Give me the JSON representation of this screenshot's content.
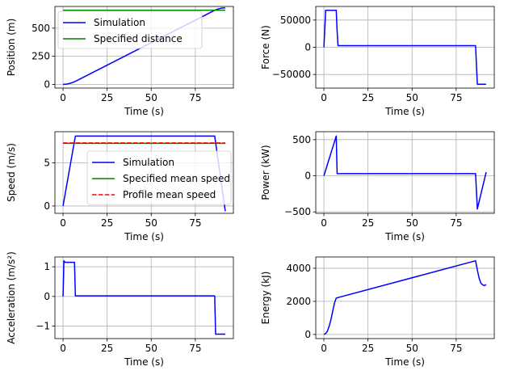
{
  "chart_data": [
    {
      "id": "position",
      "type": "line",
      "xlabel": "Time (s)",
      "ylabel": "Position (m)",
      "xlim": [
        -4.6,
        96.6
      ],
      "ylim": [
        -33,
        693
      ],
      "xticks": [
        0,
        25,
        50,
        75
      ],
      "yticks": [
        0,
        250,
        500
      ],
      "grid": true,
      "legend": "upper-left",
      "series": [
        {
          "name": "Simulation",
          "color": "#0000ff",
          "style": "solid",
          "x": [
            0,
            2,
            4,
            6,
            8,
            10,
            20,
            30,
            40,
            50,
            60,
            70,
            80,
            86,
            88,
            90,
            92
          ],
          "y": [
            0,
            2,
            9,
            20,
            35,
            51,
            131,
            211,
            291,
            371,
            451,
            531,
            611,
            659,
            671,
            679,
            680
          ]
        },
        {
          "name": "Specified distance",
          "color": "#008000",
          "style": "solid",
          "x": [
            0,
            92
          ],
          "y": [
            660,
            660
          ]
        }
      ]
    },
    {
      "id": "force",
      "type": "line",
      "xlabel": "Time (s)",
      "ylabel": "Force (N)",
      "xlim": [
        -4.6,
        96.6
      ],
      "ylim": [
        -75000,
        75000
      ],
      "xticks": [
        0,
        25,
        50,
        75
      ],
      "yticks": [
        -50000,
        0,
        50000
      ],
      "grid": true,
      "series": [
        {
          "name": "",
          "color": "#0000ff",
          "style": "solid",
          "x": [
            0,
            0.6,
            1,
            7,
            7.5,
            8,
            86,
            86.6,
            87,
            92
          ],
          "y": [
            0,
            40000,
            68000,
            68000,
            30000,
            3000,
            3000,
            -40000,
            -68000,
            -68000
          ]
        }
      ]
    },
    {
      "id": "speed",
      "type": "line",
      "xlabel": "Time (s)",
      "ylabel": "Speed (m/s)",
      "xlim": [
        -4.6,
        96.6
      ],
      "ylim": [
        -0.85,
        8.6
      ],
      "xticks": [
        0,
        25,
        50,
        75
      ],
      "yticks": [
        0,
        5
      ],
      "grid": true,
      "legend": "center",
      "series": [
        {
          "name": "Simulation",
          "color": "#0000ff",
          "style": "solid",
          "x": [
            0,
            7,
            86,
            92
          ],
          "y": [
            0,
            8.1,
            8.1,
            -0.6
          ]
        },
        {
          "name": "Specified mean speed",
          "color": "#008000",
          "style": "solid",
          "x": [
            0,
            92
          ],
          "y": [
            7.25,
            7.25
          ]
        },
        {
          "name": "Profile mean speed",
          "color": "#ff0000",
          "style": "dashed",
          "x": [
            0,
            92
          ],
          "y": [
            7.3,
            7.3
          ]
        }
      ]
    },
    {
      "id": "power",
      "type": "line",
      "xlabel": "Time (s)",
      "ylabel": "Power (kW)",
      "xlim": [
        -4.6,
        96.6
      ],
      "ylim": [
        -520,
        610
      ],
      "xticks": [
        0,
        25,
        50,
        75
      ],
      "yticks": [
        -500,
        0,
        500
      ],
      "grid": true,
      "series": [
        {
          "name": "",
          "color": "#0000ff",
          "style": "solid",
          "x": [
            0,
            7,
            7.5,
            86,
            87,
            92
          ],
          "y": [
            0,
            550,
            30,
            30,
            -460,
            50
          ]
        }
      ]
    },
    {
      "id": "acceleration",
      "type": "line",
      "xlabel": "Time (s)",
      "ylabel": "Acceleration (m/s²)",
      "xlim": [
        -4.6,
        96.6
      ],
      "ylim": [
        -1.42,
        1.33
      ],
      "xticks": [
        0,
        25,
        50,
        75
      ],
      "yticks": [
        -1,
        0,
        1
      ],
      "grid": true,
      "series": [
        {
          "name": "",
          "color": "#0000ff",
          "style": "solid",
          "x": [
            0,
            0.5,
            1.2,
            2,
            6,
            6.5,
            7,
            86,
            86.5,
            87,
            92
          ],
          "y": [
            0,
            1.2,
            1.15,
            1.15,
            1.15,
            1.15,
            0.02,
            0.02,
            -1.27,
            -1.27,
            -1.27
          ]
        }
      ]
    },
    {
      "id": "energy",
      "type": "line",
      "xlabel": "Time (s)",
      "ylabel": "Energy (kJ)",
      "xlim": [
        -4.6,
        96.6
      ],
      "ylim": [
        -250,
        4680
      ],
      "xticks": [
        0,
        25,
        50,
        75
      ],
      "yticks": [
        0,
        2000,
        4000
      ],
      "grid": true,
      "series": [
        {
          "name": "",
          "color": "#0000ff",
          "style": "solid",
          "x": [
            0,
            1,
            2,
            3,
            4,
            5,
            6,
            7,
            86,
            87,
            88,
            89,
            90,
            91,
            92
          ],
          "y": [
            0,
            50,
            200,
            500,
            900,
            1400,
            1900,
            2200,
            4450,
            3900,
            3400,
            3100,
            3000,
            2950,
            3020
          ]
        }
      ]
    }
  ]
}
